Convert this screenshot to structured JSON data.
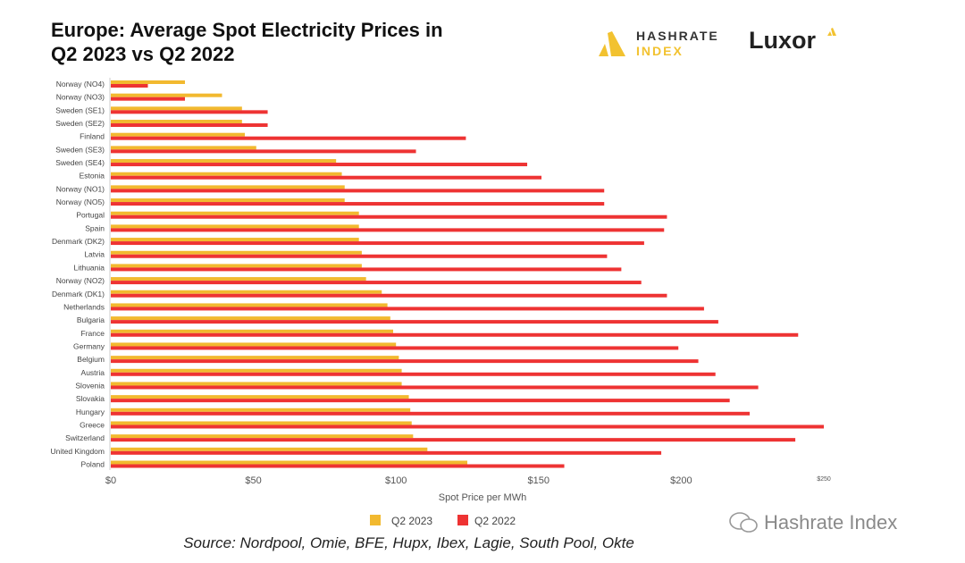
{
  "header": {
    "title_line1": "Europe: Average Spot Electricity Prices in",
    "title_line2": "Q2 2023 vs Q2 2022",
    "logo1_line1": "HASHRATE",
    "logo1_line2": "INDEX",
    "logo2": "Luxor"
  },
  "source": "Source: Nordpool, Omie, BFE, Hupx, Ibex, Lagie, South Pool, Okte",
  "watermark": "Hashrate Index",
  "colors": {
    "q2_2023": "#f2b92f",
    "q2_2022": "#ee3333"
  },
  "chart_data": {
    "type": "bar",
    "orientation": "horizontal",
    "categories": [
      "Norway (NO4)",
      "Norway (NO3)",
      "Sweden (SE1)",
      "Sweden (SE2)",
      "Finland",
      "Sweden (SE3)",
      "Sweden (SE4)",
      "Estonia",
      "Norway (NO1)",
      "Norway (NO5)",
      "Portugal",
      "Spain",
      "Denmark (DK2)",
      "Latvia",
      "Lithuania",
      "Norway (NO2)",
      "Denmark (DK1)",
      "Netherlands",
      "Bulgaria",
      "France",
      "Germany",
      "Belgium",
      "Austria",
      "Slovenia",
      "Slovakia",
      "Hungary",
      "Greece",
      "Switzerland",
      "United Kingdom",
      "Poland"
    ],
    "series": [
      {
        "name": "Q2 2023",
        "values": [
          26,
          39,
          46,
          46,
          47,
          51,
          79,
          81,
          82,
          82,
          87,
          87,
          87,
          88,
          88,
          89.5,
          95,
          97,
          98,
          99,
          100,
          101,
          102,
          102,
          104.5,
          105,
          105.5,
          106,
          111,
          125
        ]
      },
      {
        "name": "Q2 2022",
        "values": [
          13,
          26,
          55,
          55,
          124.5,
          107,
          146,
          151,
          173,
          173,
          195,
          194,
          187,
          174,
          179,
          186,
          195,
          208,
          213,
          241,
          199,
          206,
          212,
          227,
          217,
          224,
          250,
          240,
          193,
          159
        ]
      }
    ],
    "xlabel": "Spot Price per MWh",
    "xticks": [
      "$0",
      "$50",
      "$100",
      "$150",
      "$200",
      "$250"
    ],
    "xlim": [
      0,
      250
    ],
    "grid": false,
    "legend": "bottom"
  }
}
